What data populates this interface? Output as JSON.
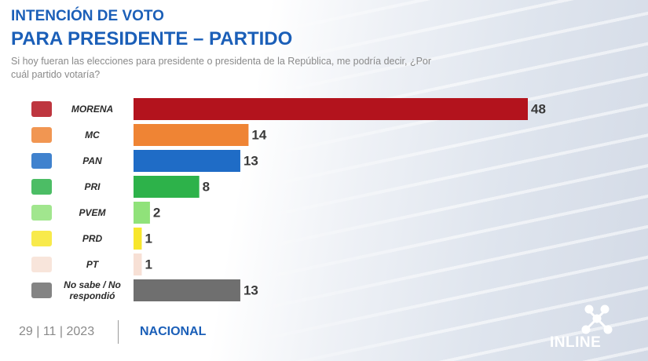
{
  "chart_data": {
    "type": "barh",
    "title": "INTENCIÓN DE VOTO",
    "subtitle": "PARA PRESIDENTE – PARTIDO",
    "question": "Si hoy fueran las elecciones para presidente o presidenta de la República, me podría decir, ¿Por  cuál partido votaría?",
    "categories": [
      "MORENA",
      "MC",
      "PAN",
      "PRI",
      "PVEM",
      "PRD",
      "PT",
      "No sabe / No respondió"
    ],
    "values": [
      48,
      14,
      13,
      8,
      2,
      1,
      1,
      13
    ],
    "colors": [
      "#b3131d",
      "#ef8434",
      "#1f6cc6",
      "#2db24a",
      "#90e27a",
      "#f7e62b",
      "#f7e0d5",
      "#6f6f6f"
    ],
    "date": "29 | 11 | 2023",
    "scope": "NACIONAL",
    "brand": "INLINE"
  }
}
